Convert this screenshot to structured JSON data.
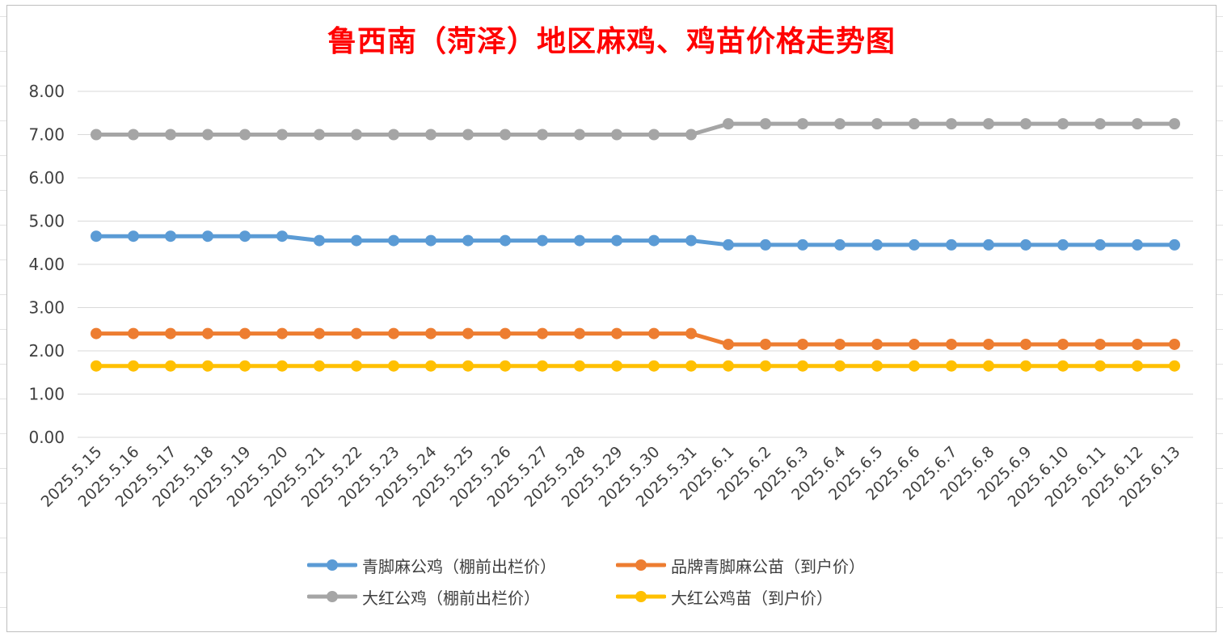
{
  "chart_data": {
    "type": "line",
    "title": "鲁西南（菏泽）地区麻鸡、鸡苗价格走势图",
    "xlabel": "",
    "ylabel": "",
    "ylim": [
      0,
      8
    ],
    "y_ticks": [
      "0.00",
      "1.00",
      "2.00",
      "3.00",
      "4.00",
      "5.00",
      "6.00",
      "7.00",
      "8.00"
    ],
    "grid": true,
    "legend_position": "bottom",
    "categories": [
      "2025.5.15",
      "2025.5.16",
      "2025.5.17",
      "2025.5.18",
      "2025.5.19",
      "2025.5.20",
      "2025.5.21",
      "2025.5.22",
      "2025.5.23",
      "2025.5.24",
      "2025.5.25",
      "2025.5.26",
      "2025.5.27",
      "2025.5.28",
      "2025.5.29",
      "2025.5.30",
      "2025.5.31",
      "2025.6.1",
      "2025.6.2",
      "2025.6.3",
      "2025.6.4",
      "2025.6.5",
      "2025.6.6",
      "2025.6.7",
      "2025.6.8",
      "2025.6.9",
      "2025.6.10",
      "2025.6.11",
      "2025.6.12",
      "2025.6.13"
    ],
    "series": [
      {
        "name": "青脚麻公鸡（棚前出栏价）",
        "color": "#5b9bd5",
        "values": [
          4.65,
          4.65,
          4.65,
          4.65,
          4.65,
          4.65,
          4.55,
          4.55,
          4.55,
          4.55,
          4.55,
          4.55,
          4.55,
          4.55,
          4.55,
          4.55,
          4.55,
          4.45,
          4.45,
          4.45,
          4.45,
          4.45,
          4.45,
          4.45,
          4.45,
          4.45,
          4.45,
          4.45,
          4.45,
          4.45
        ]
      },
      {
        "name": "品牌青脚麻公苗（到户价）",
        "color": "#ed7d31",
        "values": [
          2.4,
          2.4,
          2.4,
          2.4,
          2.4,
          2.4,
          2.4,
          2.4,
          2.4,
          2.4,
          2.4,
          2.4,
          2.4,
          2.4,
          2.4,
          2.4,
          2.4,
          2.15,
          2.15,
          2.15,
          2.15,
          2.15,
          2.15,
          2.15,
          2.15,
          2.15,
          2.15,
          2.15,
          2.15,
          2.15
        ]
      },
      {
        "name": "大红公鸡（棚前出栏价）",
        "color": "#a5a5a5",
        "values": [
          7.0,
          7.0,
          7.0,
          7.0,
          7.0,
          7.0,
          7.0,
          7.0,
          7.0,
          7.0,
          7.0,
          7.0,
          7.0,
          7.0,
          7.0,
          7.0,
          7.0,
          7.25,
          7.25,
          7.25,
          7.25,
          7.25,
          7.25,
          7.25,
          7.25,
          7.25,
          7.25,
          7.25,
          7.25,
          7.25
        ]
      },
      {
        "name": "大红公鸡苗（到户价）",
        "color": "#ffc000",
        "values": [
          1.65,
          1.65,
          1.65,
          1.65,
          1.65,
          1.65,
          1.65,
          1.65,
          1.65,
          1.65,
          1.65,
          1.65,
          1.65,
          1.65,
          1.65,
          1.65,
          1.65,
          1.65,
          1.65,
          1.65,
          1.65,
          1.65,
          1.65,
          1.65,
          1.65,
          1.65,
          1.65,
          1.65,
          1.65,
          1.65
        ]
      }
    ]
  }
}
